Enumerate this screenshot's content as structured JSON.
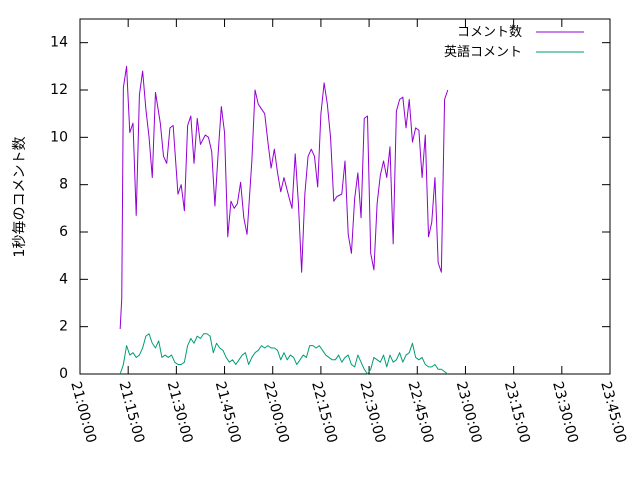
{
  "chart_data": {
    "type": "line",
    "ylabel": "1秒毎のコメント数",
    "xlabel": "",
    "title": "",
    "ylim": [
      0,
      15
    ],
    "yticks": [
      0,
      2,
      4,
      6,
      8,
      10,
      12,
      14
    ],
    "xlim": [
      "21:00:00",
      "23:45:00"
    ],
    "xticks": [
      "21:00:00",
      "21:15:00",
      "21:30:00",
      "21:45:00",
      "22:00:00",
      "22:15:00",
      "22:30:00",
      "22:45:00",
      "23:00:00",
      "23:15:00",
      "23:30:00",
      "23:45:00"
    ],
    "legend_position": "top-right",
    "grid": false,
    "series": [
      {
        "name": "コメント数",
        "color": "#9400d3",
        "points": [
          [
            "21:12:30",
            1.9
          ],
          [
            "21:13:00",
            3.2
          ],
          [
            "21:13:30",
            12.1
          ],
          [
            "21:14:30",
            13.0
          ],
          [
            "21:15:30",
            10.2
          ],
          [
            "21:16:30",
            10.6
          ],
          [
            "21:17:30",
            6.7
          ],
          [
            "21:18:30",
            11.8
          ],
          [
            "21:19:30",
            12.8
          ],
          [
            "21:20:30",
            11.2
          ],
          [
            "21:21:30",
            10.0
          ],
          [
            "21:22:30",
            8.3
          ],
          [
            "21:23:30",
            11.9
          ],
          [
            "21:25:00",
            10.6
          ],
          [
            "21:26:00",
            9.2
          ],
          [
            "21:27:00",
            8.9
          ],
          [
            "21:28:00",
            10.4
          ],
          [
            "21:29:00",
            10.5
          ],
          [
            "21:30:30",
            7.6
          ],
          [
            "21:31:30",
            8.0
          ],
          [
            "21:32:30",
            6.9
          ],
          [
            "21:33:30",
            10.5
          ],
          [
            "21:34:30",
            10.9
          ],
          [
            "21:35:30",
            8.9
          ],
          [
            "21:36:30",
            10.8
          ],
          [
            "21:37:30",
            9.7
          ],
          [
            "21:39:00",
            10.1
          ],
          [
            "21:40:00",
            10.0
          ],
          [
            "21:41:00",
            9.4
          ],
          [
            "21:42:00",
            7.1
          ],
          [
            "21:43:00",
            9.3
          ],
          [
            "21:44:00",
            11.3
          ],
          [
            "21:45:00",
            10.2
          ],
          [
            "21:46:00",
            5.8
          ],
          [
            "21:47:00",
            7.3
          ],
          [
            "21:48:00",
            7.0
          ],
          [
            "21:49:00",
            7.2
          ],
          [
            "21:50:00",
            8.1
          ],
          [
            "21:51:00",
            6.6
          ],
          [
            "21:52:00",
            5.9
          ],
          [
            "21:53:30",
            9.0
          ],
          [
            "21:54:30",
            12.0
          ],
          [
            "21:55:30",
            11.4
          ],
          [
            "21:56:30",
            11.2
          ],
          [
            "21:57:30",
            11.0
          ],
          [
            "21:58:30",
            9.8
          ],
          [
            "21:59:30",
            8.7
          ],
          [
            "22:00:30",
            9.5
          ],
          [
            "22:01:30",
            8.5
          ],
          [
            "22:02:30",
            7.7
          ],
          [
            "22:03:30",
            8.3
          ],
          [
            "22:05:00",
            7.5
          ],
          [
            "22:06:00",
            7.0
          ],
          [
            "22:07:00",
            9.3
          ],
          [
            "22:08:00",
            7.2
          ],
          [
            "22:09:00",
            4.3
          ],
          [
            "22:10:00",
            7.6
          ],
          [
            "22:11:00",
            9.2
          ],
          [
            "22:12:00",
            9.5
          ],
          [
            "22:13:00",
            9.2
          ],
          [
            "22:14:00",
            7.9
          ],
          [
            "22:15:00",
            11.0
          ],
          [
            "22:16:00",
            12.3
          ],
          [
            "22:17:00",
            11.4
          ],
          [
            "22:18:00",
            10.0
          ],
          [
            "22:19:00",
            7.3
          ],
          [
            "22:20:00",
            7.5
          ],
          [
            "22:21:30",
            7.6
          ],
          [
            "22:22:30",
            9.0
          ],
          [
            "22:23:30",
            5.9
          ],
          [
            "22:24:30",
            5.1
          ],
          [
            "22:25:30",
            7.4
          ],
          [
            "22:26:30",
            8.5
          ],
          [
            "22:27:30",
            6.6
          ],
          [
            "22:28:30",
            10.8
          ],
          [
            "22:29:30",
            10.9
          ],
          [
            "22:30:30",
            5.1
          ],
          [
            "22:31:30",
            4.4
          ],
          [
            "22:32:30",
            7.2
          ],
          [
            "22:33:30",
            8.4
          ],
          [
            "22:34:30",
            9.0
          ],
          [
            "22:35:30",
            8.3
          ],
          [
            "22:36:30",
            9.6
          ],
          [
            "22:37:30",
            5.5
          ],
          [
            "22:38:30",
            11.1
          ],
          [
            "22:39:30",
            11.6
          ],
          [
            "22:40:30",
            11.7
          ],
          [
            "22:41:30",
            10.4
          ],
          [
            "22:42:30",
            11.6
          ],
          [
            "22:43:30",
            9.8
          ],
          [
            "22:44:30",
            10.4
          ],
          [
            "22:45:30",
            10.3
          ],
          [
            "22:46:30",
            8.3
          ],
          [
            "22:47:30",
            10.1
          ],
          [
            "22:48:30",
            5.8
          ],
          [
            "22:49:30",
            6.4
          ],
          [
            "22:50:30",
            8.3
          ],
          [
            "22:51:30",
            4.7
          ],
          [
            "22:52:30",
            4.3
          ],
          [
            "22:53:30",
            11.6
          ],
          [
            "22:54:30",
            12.0
          ]
        ]
      },
      {
        "name": "英語コメント",
        "color": "#009e73",
        "points": [
          [
            "21:12:30",
            0.0
          ],
          [
            "21:13:30",
            0.4
          ],
          [
            "21:14:30",
            1.2
          ],
          [
            "21:15:30",
            0.8
          ],
          [
            "21:16:30",
            0.9
          ],
          [
            "21:17:30",
            0.7
          ],
          [
            "21:18:30",
            0.8
          ],
          [
            "21:19:30",
            1.1
          ],
          [
            "21:20:30",
            1.6
          ],
          [
            "21:21:30",
            1.7
          ],
          [
            "21:22:30",
            1.3
          ],
          [
            "21:23:30",
            1.1
          ],
          [
            "21:24:30",
            1.4
          ],
          [
            "21:25:30",
            0.7
          ],
          [
            "21:26:30",
            0.8
          ],
          [
            "21:27:30",
            0.7
          ],
          [
            "21:28:30",
            0.8
          ],
          [
            "21:29:30",
            0.5
          ],
          [
            "21:30:30",
            0.4
          ],
          [
            "21:31:30",
            0.4
          ],
          [
            "21:32:30",
            0.5
          ],
          [
            "21:33:30",
            1.2
          ],
          [
            "21:34:30",
            1.5
          ],
          [
            "21:35:30",
            1.3
          ],
          [
            "21:36:30",
            1.6
          ],
          [
            "21:37:30",
            1.5
          ],
          [
            "21:38:30",
            1.7
          ],
          [
            "21:39:30",
            1.7
          ],
          [
            "21:40:30",
            1.6
          ],
          [
            "21:41:30",
            0.9
          ],
          [
            "21:42:30",
            1.3
          ],
          [
            "21:43:30",
            1.1
          ],
          [
            "21:44:30",
            1.0
          ],
          [
            "21:45:30",
            0.7
          ],
          [
            "21:46:30",
            0.5
          ],
          [
            "21:47:30",
            0.6
          ],
          [
            "21:48:30",
            0.4
          ],
          [
            "21:49:30",
            0.6
          ],
          [
            "21:50:30",
            0.8
          ],
          [
            "21:51:30",
            0.9
          ],
          [
            "21:52:30",
            0.4
          ],
          [
            "21:53:30",
            0.7
          ],
          [
            "21:54:30",
            0.9
          ],
          [
            "21:55:30",
            1.0
          ],
          [
            "21:56:30",
            1.2
          ],
          [
            "21:57:30",
            1.1
          ],
          [
            "21:58:30",
            1.2
          ],
          [
            "21:59:30",
            1.1
          ],
          [
            "22:00:30",
            1.1
          ],
          [
            "22:01:30",
            1.0
          ],
          [
            "22:02:30",
            0.6
          ],
          [
            "22:03:30",
            0.9
          ],
          [
            "22:04:30",
            0.6
          ],
          [
            "22:05:30",
            0.8
          ],
          [
            "22:06:30",
            0.7
          ],
          [
            "22:07:30",
            0.4
          ],
          [
            "22:08:30",
            0.6
          ],
          [
            "22:09:30",
            0.8
          ],
          [
            "22:10:30",
            0.7
          ],
          [
            "22:11:30",
            1.2
          ],
          [
            "22:12:30",
            1.2
          ],
          [
            "22:13:30",
            1.1
          ],
          [
            "22:14:30",
            1.2
          ],
          [
            "22:15:30",
            1.0
          ],
          [
            "22:16:30",
            0.8
          ],
          [
            "22:17:30",
            0.7
          ],
          [
            "22:18:30",
            0.6
          ],
          [
            "22:19:30",
            0.6
          ],
          [
            "22:20:30",
            0.8
          ],
          [
            "22:21:30",
            0.5
          ],
          [
            "22:22:30",
            0.7
          ],
          [
            "22:23:30",
            0.8
          ],
          [
            "22:24:30",
            0.4
          ],
          [
            "22:25:30",
            0.3
          ],
          [
            "22:26:30",
            0.8
          ],
          [
            "22:27:30",
            0.5
          ],
          [
            "22:28:30",
            0.2
          ],
          [
            "22:29:30",
            0.0
          ],
          [
            "22:30:30",
            0.2
          ],
          [
            "22:31:30",
            0.7
          ],
          [
            "22:32:30",
            0.6
          ],
          [
            "22:33:30",
            0.5
          ],
          [
            "22:34:30",
            0.8
          ],
          [
            "22:35:30",
            0.3
          ],
          [
            "22:36:30",
            0.8
          ],
          [
            "22:37:30",
            0.5
          ],
          [
            "22:38:30",
            0.6
          ],
          [
            "22:39:30",
            0.9
          ],
          [
            "22:40:30",
            0.5
          ],
          [
            "22:41:30",
            0.8
          ],
          [
            "22:42:30",
            0.9
          ],
          [
            "22:43:30",
            1.3
          ],
          [
            "22:44:30",
            0.7
          ],
          [
            "22:45:30",
            0.6
          ],
          [
            "22:46:30",
            0.7
          ],
          [
            "22:47:30",
            0.4
          ],
          [
            "22:48:30",
            0.3
          ],
          [
            "22:49:30",
            0.3
          ],
          [
            "22:50:30",
            0.4
          ],
          [
            "22:51:30",
            0.2
          ],
          [
            "22:52:30",
            0.2
          ],
          [
            "22:53:30",
            0.1
          ],
          [
            "22:54:30",
            0.0
          ]
        ]
      }
    ]
  }
}
